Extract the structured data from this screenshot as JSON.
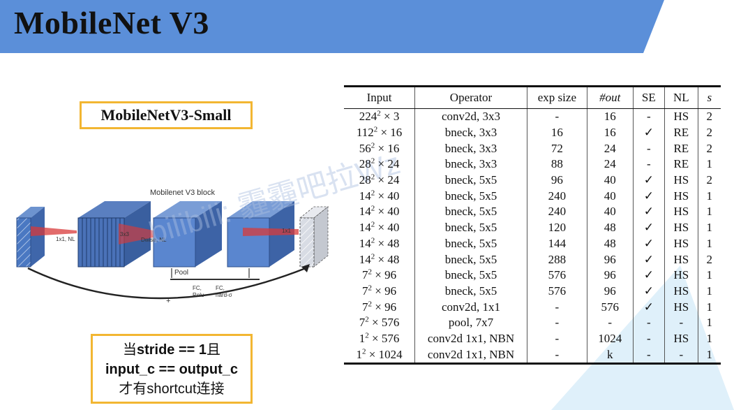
{
  "slide": {
    "title": "MobileNet V3",
    "header_color": "#5b8fd9",
    "accent_color": "#f2b632"
  },
  "variant_label": "MobileNetV3-Small",
  "diagram": {
    "title": "Mobilenet V3 block",
    "labels": {
      "expand": "1x1, NL",
      "dwise_k": "3x3",
      "dwise": "Dwise, NL",
      "project": "1x1",
      "pool": "Pool",
      "fc_relu": "FC,\nRelu",
      "fc_hard": "FC,\nhard-σ",
      "plus": "+"
    }
  },
  "note": {
    "line1_pre": "当",
    "line1_bold": "stride == 1",
    "line1_post": "且",
    "line2": "input_c == output_c",
    "line3": "才有shortcut连接"
  },
  "watermark": "bilibili: 霾霾吧拉Wz",
  "table": {
    "headers": [
      "Input",
      "Operator",
      "exp size",
      "#out",
      "SE",
      "NL",
      "s"
    ],
    "rows": [
      {
        "base": "224",
        "exp": "2",
        "rest": " × 3",
        "op": "conv2d, 3x3",
        "exp_size": "-",
        "out": "16",
        "se": "-",
        "nl": "HS",
        "s": "2"
      },
      {
        "base": "112",
        "exp": "2",
        "rest": " × 16",
        "op": "bneck, 3x3",
        "exp_size": "16",
        "out": "16",
        "se": "✓",
        "nl": "RE",
        "s": "2"
      },
      {
        "base": "56",
        "exp": "2",
        "rest": " × 16",
        "op": "bneck, 3x3",
        "exp_size": "72",
        "out": "24",
        "se": "-",
        "nl": "RE",
        "s": "2"
      },
      {
        "base": "28",
        "exp": "2",
        "rest": " × 24",
        "op": "bneck, 3x3",
        "exp_size": "88",
        "out": "24",
        "se": "-",
        "nl": "RE",
        "s": "1"
      },
      {
        "base": "28",
        "exp": "2",
        "rest": " × 24",
        "op": "bneck, 5x5",
        "exp_size": "96",
        "out": "40",
        "se": "✓",
        "nl": "HS",
        "s": "2"
      },
      {
        "base": "14",
        "exp": "2",
        "rest": " × 40",
        "op": "bneck, 5x5",
        "exp_size": "240",
        "out": "40",
        "se": "✓",
        "nl": "HS",
        "s": "1"
      },
      {
        "base": "14",
        "exp": "2",
        "rest": " × 40",
        "op": "bneck, 5x5",
        "exp_size": "240",
        "out": "40",
        "se": "✓",
        "nl": "HS",
        "s": "1"
      },
      {
        "base": "14",
        "exp": "2",
        "rest": " × 40",
        "op": "bneck, 5x5",
        "exp_size": "120",
        "out": "48",
        "se": "✓",
        "nl": "HS",
        "s": "1"
      },
      {
        "base": "14",
        "exp": "2",
        "rest": " × 48",
        "op": "bneck, 5x5",
        "exp_size": "144",
        "out": "48",
        "se": "✓",
        "nl": "HS",
        "s": "1"
      },
      {
        "base": "14",
        "exp": "2",
        "rest": " × 48",
        "op": "bneck, 5x5",
        "exp_size": "288",
        "out": "96",
        "se": "✓",
        "nl": "HS",
        "s": "2"
      },
      {
        "base": "7",
        "exp": "2",
        "rest": " × 96",
        "op": "bneck, 5x5",
        "exp_size": "576",
        "out": "96",
        "se": "✓",
        "nl": "HS",
        "s": "1"
      },
      {
        "base": "7",
        "exp": "2",
        "rest": " × 96",
        "op": "bneck, 5x5",
        "exp_size": "576",
        "out": "96",
        "se": "✓",
        "nl": "HS",
        "s": "1"
      },
      {
        "base": "7",
        "exp": "2",
        "rest": " × 96",
        "op": "conv2d, 1x1",
        "exp_size": "-",
        "out": "576",
        "se": "✓",
        "nl": "HS",
        "s": "1"
      },
      {
        "base": "7",
        "exp": "2",
        "rest": " × 576",
        "op": "pool, 7x7",
        "exp_size": "-",
        "out": "-",
        "se": "-",
        "nl": "-",
        "s": "1"
      },
      {
        "base": "1",
        "exp": "2",
        "rest": " × 576",
        "op": "conv2d 1x1, NBN",
        "exp_size": "-",
        "out": "1024",
        "se": "-",
        "nl": "HS",
        "s": "1"
      },
      {
        "base": "1",
        "exp": "2",
        "rest": " × 1024",
        "op": "conv2d 1x1, NBN",
        "exp_size": "-",
        "out": "k",
        "se": "-",
        "nl": "-",
        "s": "1"
      }
    ]
  }
}
